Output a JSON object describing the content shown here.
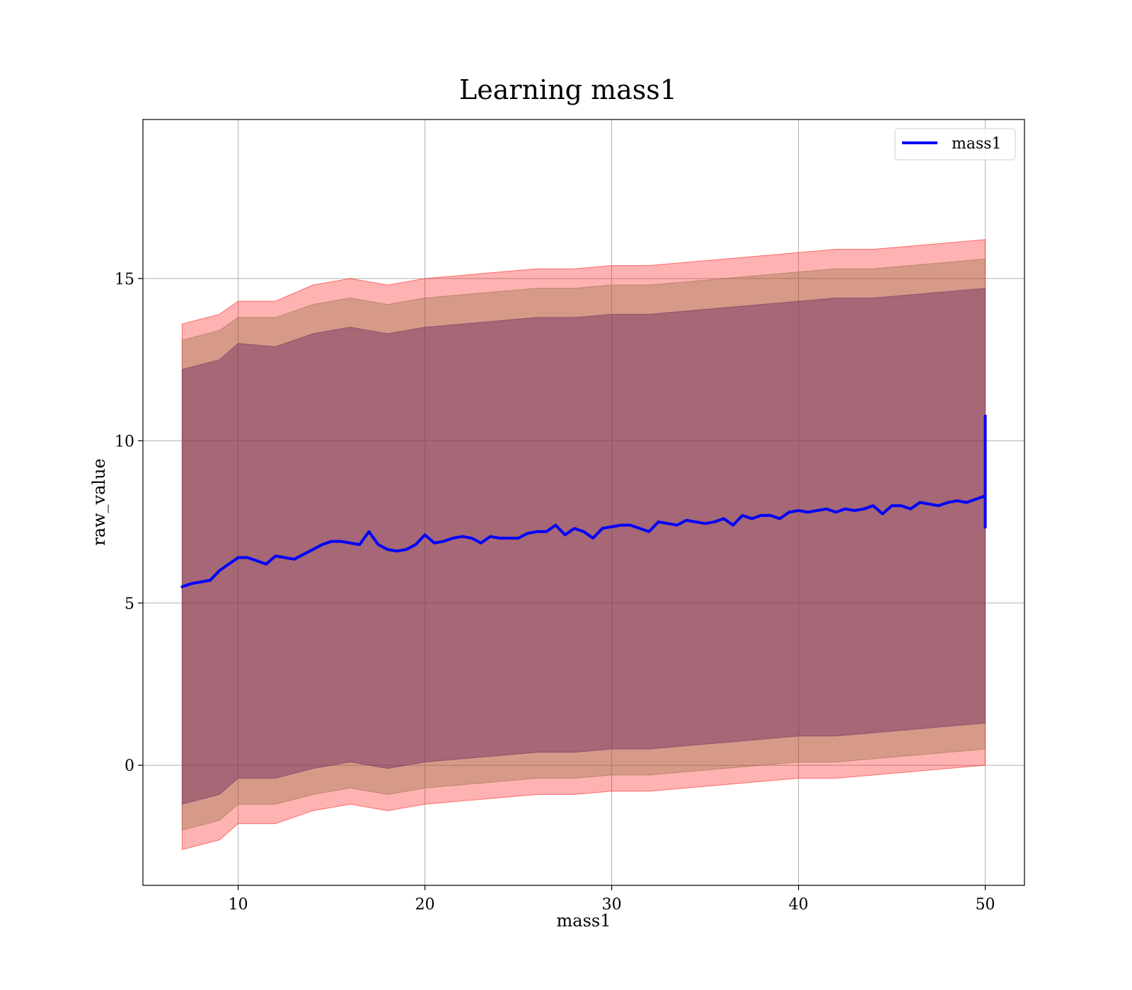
{
  "chart_data": {
    "type": "line",
    "title": "Learning mass1",
    "xlabel": "mass1",
    "ylabel": "raw_value",
    "xlim": [
      4.9,
      52.1
    ],
    "ylim": [
      -3.7,
      19.9
    ],
    "xticks": [
      10,
      20,
      30,
      40,
      50
    ],
    "yticks": [
      0,
      5,
      10,
      15
    ],
    "xtick_labels": [
      "10",
      "20",
      "30",
      "40",
      "50"
    ],
    "ytick_labels": [
      "0",
      "5",
      "10",
      "15"
    ],
    "grid": true,
    "legend_position": "top-right",
    "series": [
      {
        "name": "mass1",
        "color": "#0000ff",
        "x": [
          7.0,
          7.5,
          8.0,
          8.5,
          9.0,
          9.5,
          10.0,
          10.5,
          11.0,
          11.5,
          12.0,
          12.5,
          13.0,
          13.5,
          14.0,
          14.5,
          15.0,
          15.5,
          16.0,
          16.5,
          17.0,
          17.5,
          18.0,
          18.5,
          19.0,
          19.5,
          20.0,
          20.5,
          21.0,
          21.5,
          22.0,
          22.5,
          23.0,
          23.5,
          24.0,
          24.5,
          25.0,
          25.5,
          26.0,
          26.5,
          27.0,
          27.5,
          28.0,
          28.5,
          29.0,
          29.5,
          30.0,
          30.5,
          31.0,
          31.5,
          32.0,
          32.5,
          33.0,
          33.5,
          34.0,
          34.5,
          35.0,
          35.5,
          36.0,
          36.5,
          37.0,
          37.5,
          38.0,
          38.5,
          39.0,
          39.5,
          40.0,
          40.5,
          41.0,
          41.5,
          42.0,
          42.5,
          43.0,
          43.5,
          44.0,
          44.5,
          45.0,
          45.5,
          46.0,
          46.5,
          47.0,
          47.5,
          48.0,
          48.5,
          49.0,
          49.5,
          50.0
        ],
        "y": [
          5.5,
          5.6,
          5.65,
          5.7,
          6.0,
          6.2,
          6.4,
          6.4,
          6.3,
          6.2,
          6.45,
          6.4,
          6.35,
          6.5,
          6.65,
          6.8,
          6.9,
          6.9,
          6.85,
          6.8,
          7.2,
          6.8,
          6.65,
          6.6,
          6.65,
          6.8,
          7.1,
          6.85,
          6.9,
          7.0,
          7.05,
          7.0,
          6.85,
          7.05,
          7.0,
          7.0,
          7.0,
          7.15,
          7.2,
          7.2,
          7.4,
          7.1,
          7.3,
          7.2,
          7.0,
          7.3,
          7.35,
          7.4,
          7.4,
          7.3,
          7.2,
          7.5,
          7.45,
          7.4,
          7.55,
          7.5,
          7.45,
          7.5,
          7.6,
          7.4,
          7.7,
          7.6,
          7.7,
          7.7,
          7.6,
          7.8,
          7.85,
          7.8,
          7.85,
          7.9,
          7.8,
          7.9,
          7.85,
          7.9,
          8.0,
          7.75,
          8.0,
          8.0,
          7.9,
          8.1,
          8.05,
          8.0,
          8.1,
          8.15,
          8.1,
          8.2,
          8.3
        ]
      }
    ],
    "bands": [
      {
        "name": "outer",
        "color": "#ff0000",
        "opacity": 0.3,
        "x": [
          7.0,
          9.0,
          10.0,
          12.0,
          14.0,
          16.0,
          18.0,
          20.0,
          22.0,
          24.0,
          26.0,
          28.0,
          30.0,
          32.0,
          34.0,
          36.0,
          38.0,
          40.0,
          42.0,
          44.0,
          46.0,
          48.0,
          50.0
        ],
        "upper": [
          13.6,
          13.9,
          14.3,
          14.3,
          14.8,
          15.0,
          14.8,
          15.0,
          15.1,
          15.2,
          15.3,
          15.3,
          15.4,
          15.4,
          15.5,
          15.6,
          15.7,
          15.8,
          15.9,
          15.9,
          16.0,
          16.1,
          16.2
        ],
        "lower": [
          -2.6,
          -2.3,
          -1.8,
          -1.8,
          -1.4,
          -1.2,
          -1.4,
          -1.2,
          -1.1,
          -1.0,
          -0.9,
          -0.9,
          -0.8,
          -0.8,
          -0.7,
          -0.6,
          -0.5,
          -0.4,
          -0.4,
          -0.3,
          -0.2,
          -0.1,
          0.0
        ]
      },
      {
        "name": "middle",
        "color": "#8b6d3d",
        "opacity": 0.35,
        "x": [
          7.0,
          9.0,
          10.0,
          12.0,
          14.0,
          16.0,
          18.0,
          20.0,
          22.0,
          24.0,
          26.0,
          28.0,
          30.0,
          32.0,
          34.0,
          36.0,
          38.0,
          40.0,
          42.0,
          44.0,
          46.0,
          48.0,
          50.0
        ],
        "upper": [
          13.1,
          13.4,
          13.8,
          13.8,
          14.2,
          14.4,
          14.2,
          14.4,
          14.5,
          14.6,
          14.7,
          14.7,
          14.8,
          14.8,
          14.9,
          15.0,
          15.1,
          15.2,
          15.3,
          15.3,
          15.4,
          15.5,
          15.6
        ],
        "lower": [
          -2.0,
          -1.7,
          -1.2,
          -1.2,
          -0.9,
          -0.7,
          -0.9,
          -0.7,
          -0.6,
          -0.5,
          -0.4,
          -0.4,
          -0.3,
          -0.3,
          -0.2,
          -0.1,
          0.0,
          0.1,
          0.1,
          0.2,
          0.3,
          0.4,
          0.5
        ]
      },
      {
        "name": "inner",
        "color": "#6b2a60",
        "opacity": 0.45,
        "x": [
          7.0,
          9.0,
          10.0,
          12.0,
          14.0,
          16.0,
          18.0,
          20.0,
          22.0,
          24.0,
          26.0,
          28.0,
          30.0,
          32.0,
          34.0,
          36.0,
          38.0,
          40.0,
          42.0,
          44.0,
          46.0,
          48.0,
          50.0
        ],
        "upper": [
          12.2,
          12.5,
          13.0,
          12.9,
          13.3,
          13.5,
          13.3,
          13.5,
          13.6,
          13.7,
          13.8,
          13.8,
          13.9,
          13.9,
          14.0,
          14.1,
          14.2,
          14.3,
          14.4,
          14.4,
          14.5,
          14.6,
          14.7
        ],
        "lower": [
          -1.2,
          -0.9,
          -0.4,
          -0.4,
          -0.1,
          0.1,
          -0.1,
          0.1,
          0.2,
          0.3,
          0.4,
          0.4,
          0.5,
          0.5,
          0.6,
          0.7,
          0.8,
          0.9,
          0.9,
          1.0,
          1.1,
          1.2,
          1.3
        ]
      }
    ],
    "end_spike": {
      "x": 50.0,
      "ymin": 7.3,
      "ymax": 10.8
    }
  }
}
